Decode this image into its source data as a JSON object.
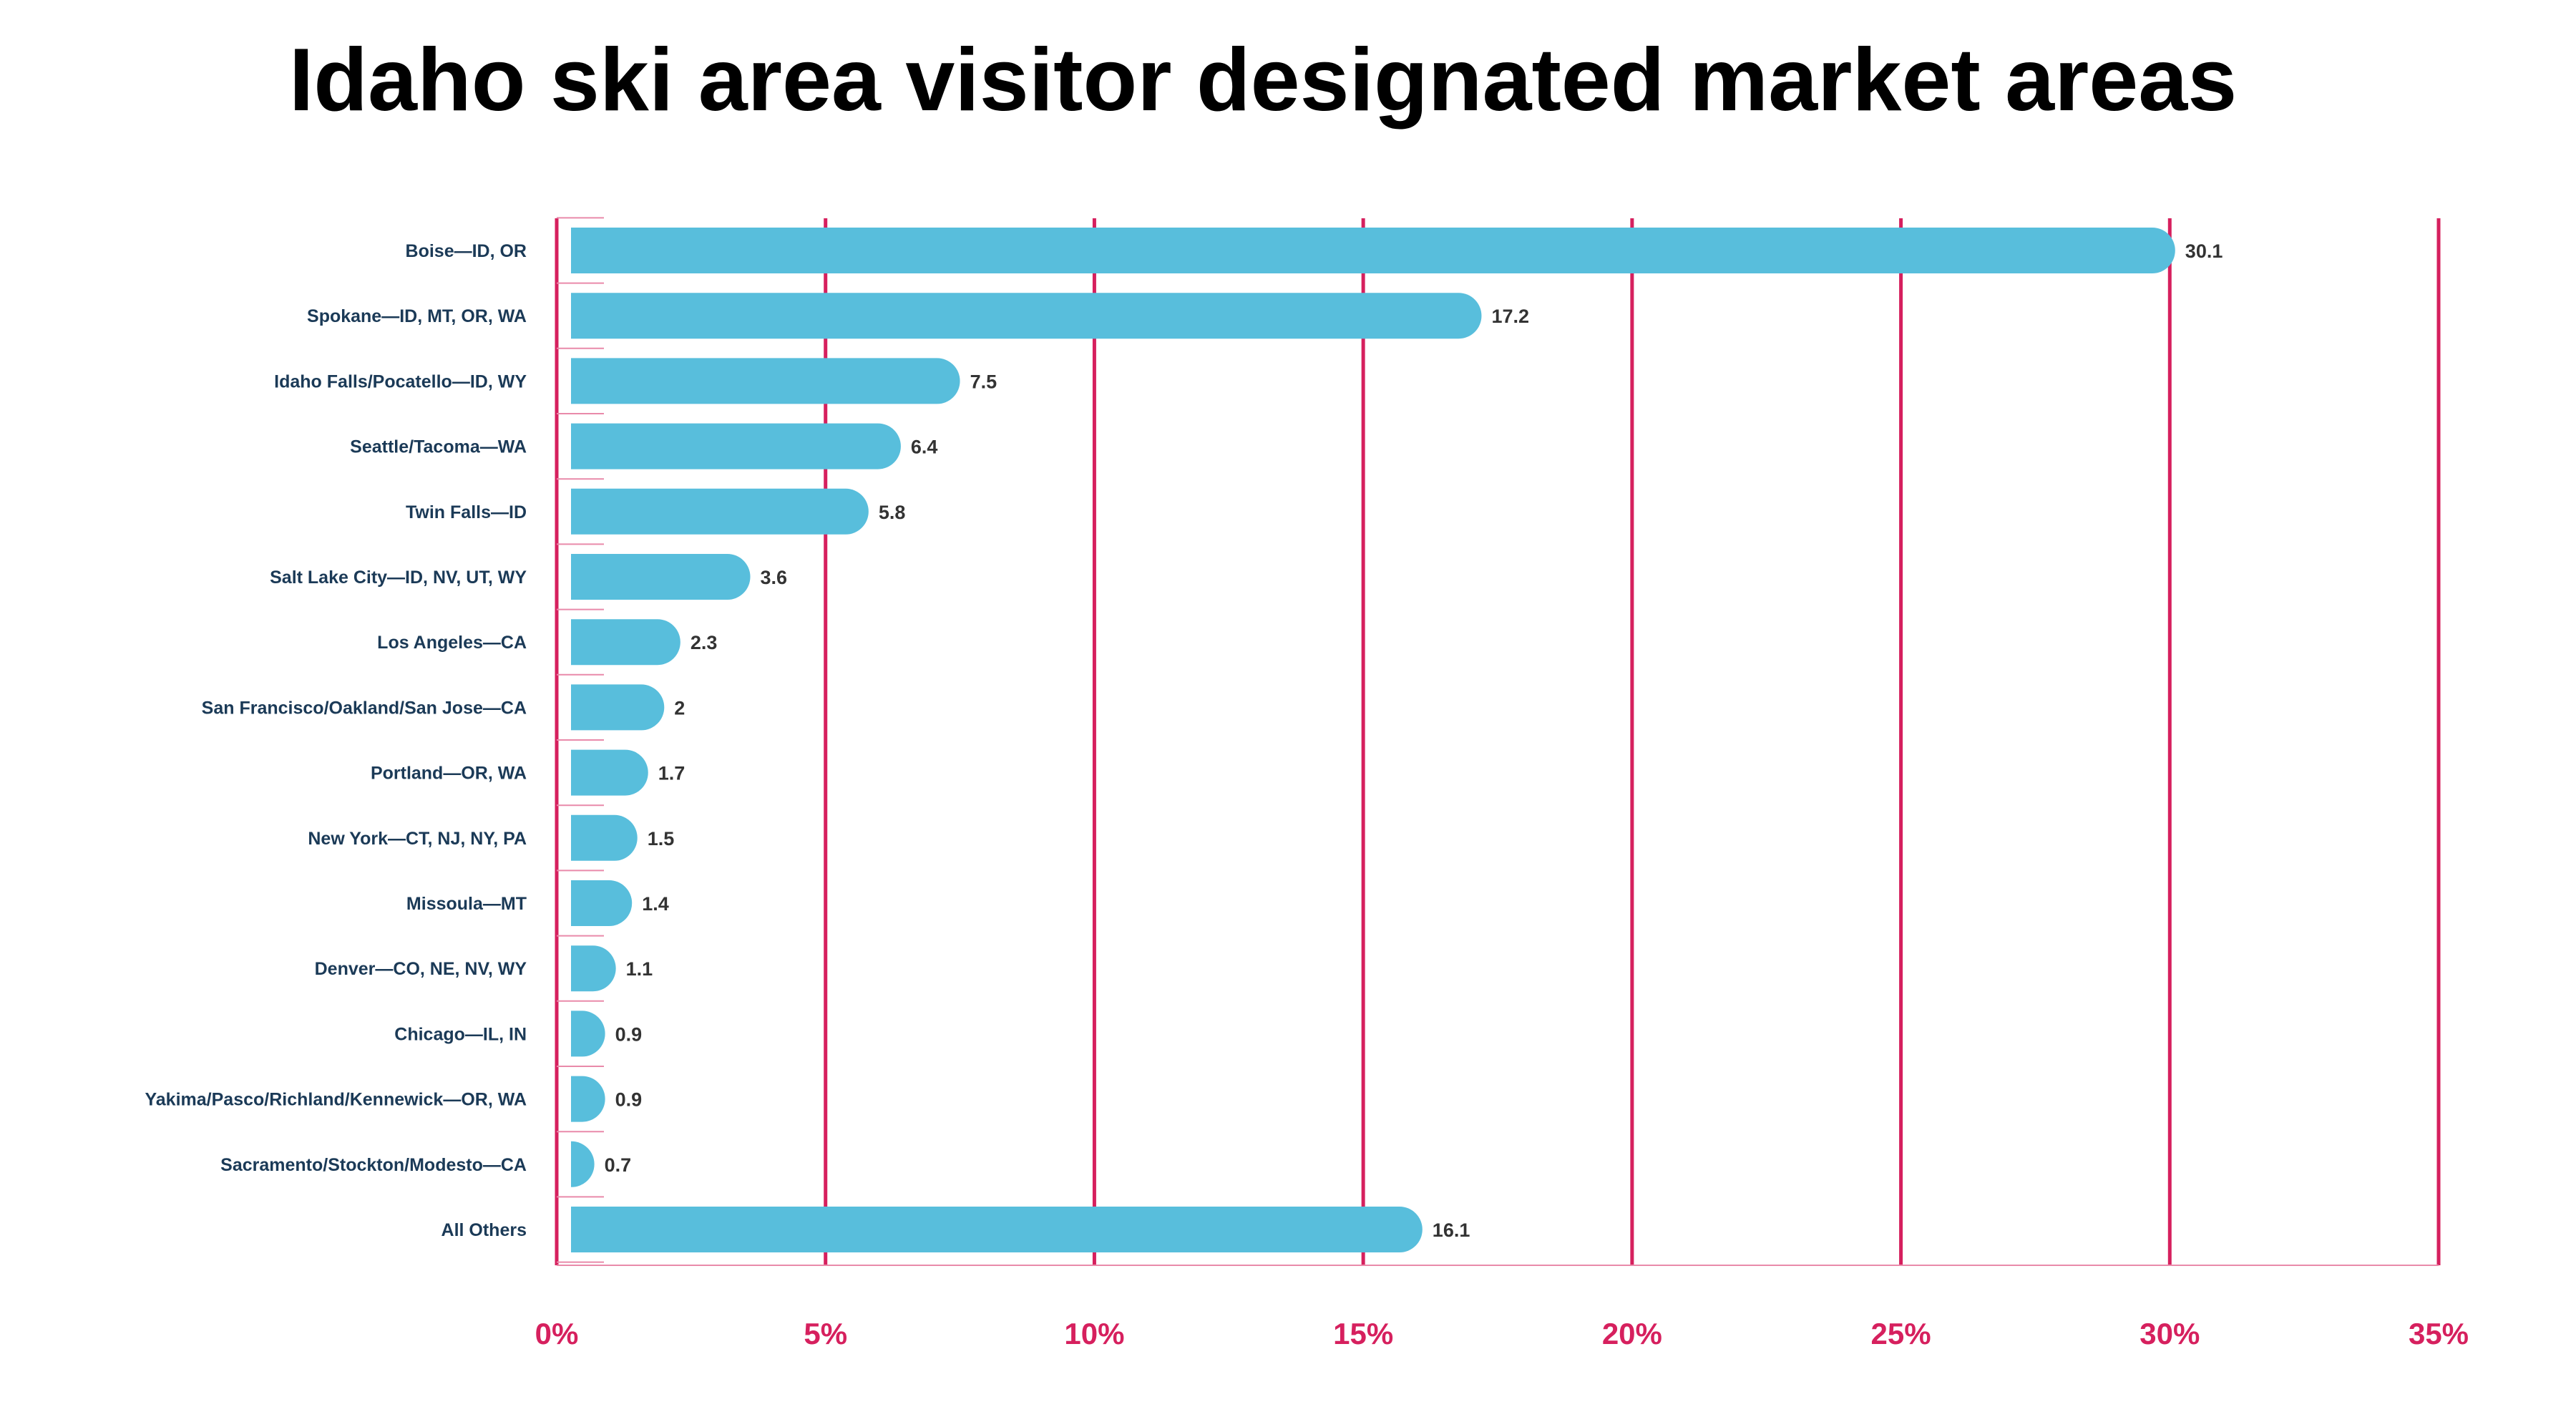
{
  "chart_data": {
    "type": "bar",
    "orientation": "horizontal",
    "title": "Idaho ski area visitor designated market areas",
    "xlabel": "",
    "ylabel": "",
    "categories": [
      "Boise—ID, OR",
      "Spokane—ID, MT, OR, WA",
      "Idaho Falls/Pocatello—ID, WY",
      "Seattle/Tacoma—WA",
      "Twin Falls—ID",
      "Salt Lake City—ID, NV, UT, WY",
      "Los Angeles—CA",
      "San Francisco/Oakland/San Jose—CA",
      "Portland—OR, WA",
      "New York—CT, NJ, NY, PA",
      "Missoula—MT",
      "Denver—CO, NE, NV, WY",
      "Chicago—IL, IN",
      "Yakima/Pasco/Richland/Kennewick—OR, WA",
      "Sacramento/Stockton/Modesto—CA",
      "All Others"
    ],
    "values": [
      30.1,
      17.2,
      7.5,
      6.4,
      5.8,
      3.6,
      2.3,
      2,
      1.7,
      1.5,
      1.4,
      1.1,
      0.9,
      0.9,
      0.7,
      16.1
    ],
    "value_labels": [
      "30.1",
      "17.2",
      "7.5",
      "6.4",
      "5.8",
      "3.6",
      "2.3",
      "2",
      "1.7",
      "1.5",
      "1.4",
      "1.1",
      "0.9",
      "0.9",
      "0.7",
      "16.1"
    ],
    "xlim": [
      0,
      35
    ],
    "x_ticks": [
      0,
      5,
      10,
      15,
      20,
      25,
      30,
      35
    ],
    "x_tick_labels": [
      "0%",
      "5%",
      "10%",
      "15%",
      "20%",
      "25%",
      "30%",
      "35%"
    ],
    "grid": true,
    "legend": "none",
    "colors": {
      "bar": "#58bedc",
      "grid": "#d6205e",
      "tick_label": "#d6205e",
      "category_label": "#1b3a57",
      "value_label": "#333333"
    }
  }
}
